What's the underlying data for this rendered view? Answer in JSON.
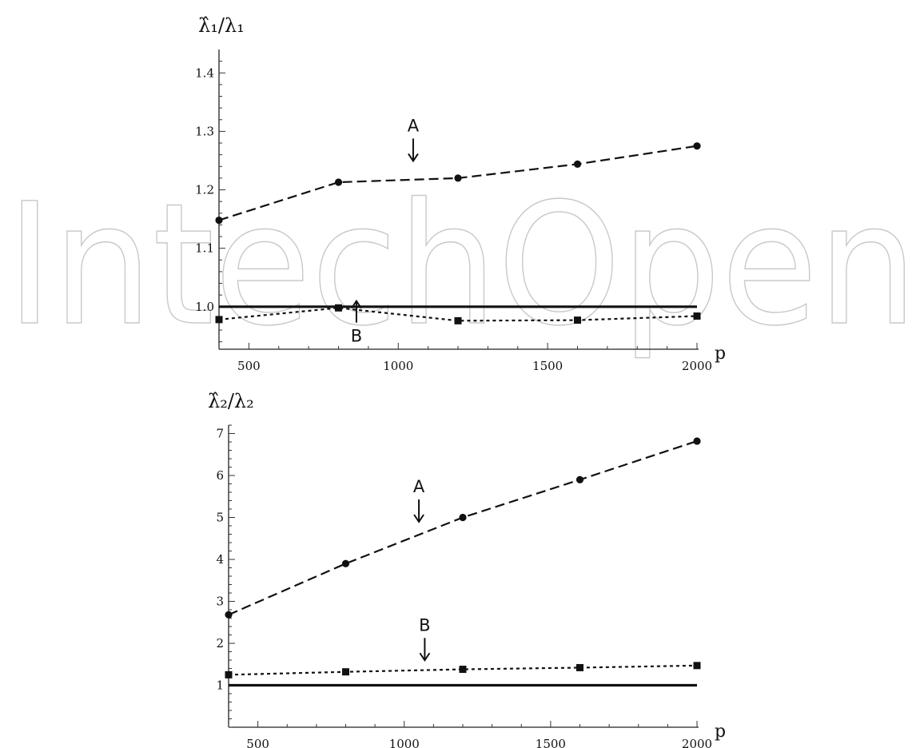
{
  "watermark": "IntechOpen",
  "chart_data": [
    {
      "type": "line",
      "ylabel": "λ̂₁/λ₁",
      "xlabel": "p",
      "xlim": [
        400,
        2000
      ],
      "ylim": [
        0.93,
        1.44
      ],
      "xticks": [
        500,
        1000,
        1500,
        2000
      ],
      "yticks": [
        1.0,
        1.1,
        1.2,
        1.3,
        1.4
      ],
      "yticklabels": [
        "1.0",
        "1.1",
        "1.2",
        "1.3",
        "1.4"
      ],
      "reference_line": 1.0,
      "series": [
        {
          "name": "A",
          "style": "dashed",
          "marker": "circle",
          "x": [
            400,
            800,
            1200,
            1600,
            2000
          ],
          "y": [
            1.148,
            1.213,
            1.22,
            1.244,
            1.275
          ]
        },
        {
          "name": "B",
          "style": "dotted",
          "marker": "square",
          "x": [
            400,
            800,
            1200,
            1600,
            2000
          ],
          "y": [
            0.978,
            0.998,
            0.976,
            0.977,
            0.984
          ]
        }
      ],
      "annotations": [
        {
          "text": "A",
          "x": 1050,
          "y": 1.3,
          "arrow": "down"
        },
        {
          "text": "B",
          "x": 860,
          "y": 0.94,
          "arrow": "up"
        }
      ]
    },
    {
      "type": "line",
      "ylabel": "λ̂₂/λ₂",
      "xlabel": "p",
      "xlim": [
        400,
        2000
      ],
      "ylim": [
        0.0,
        7.2
      ],
      "xticks": [
        500,
        1000,
        1500,
        2000
      ],
      "yticks": [
        1,
        2,
        3,
        4,
        5,
        6,
        7
      ],
      "yticklabels": [
        "1",
        "2",
        "3",
        "4",
        "5",
        "6",
        "7"
      ],
      "reference_line": 1.0,
      "series": [
        {
          "name": "A",
          "style": "dashed",
          "marker": "circle",
          "x": [
            400,
            800,
            1200,
            1600,
            2000
          ],
          "y": [
            2.68,
            3.9,
            5.0,
            5.9,
            6.82
          ]
        },
        {
          "name": "B",
          "style": "dotted",
          "marker": "square",
          "x": [
            400,
            800,
            1200,
            1600,
            2000
          ],
          "y": [
            1.25,
            1.32,
            1.38,
            1.42,
            1.47
          ]
        }
      ],
      "annotations": [
        {
          "text": "A",
          "x": 1050,
          "y": 5.6,
          "arrow": "down"
        },
        {
          "text": "B",
          "x": 1070,
          "y": 2.3,
          "arrow": "down"
        }
      ]
    }
  ]
}
